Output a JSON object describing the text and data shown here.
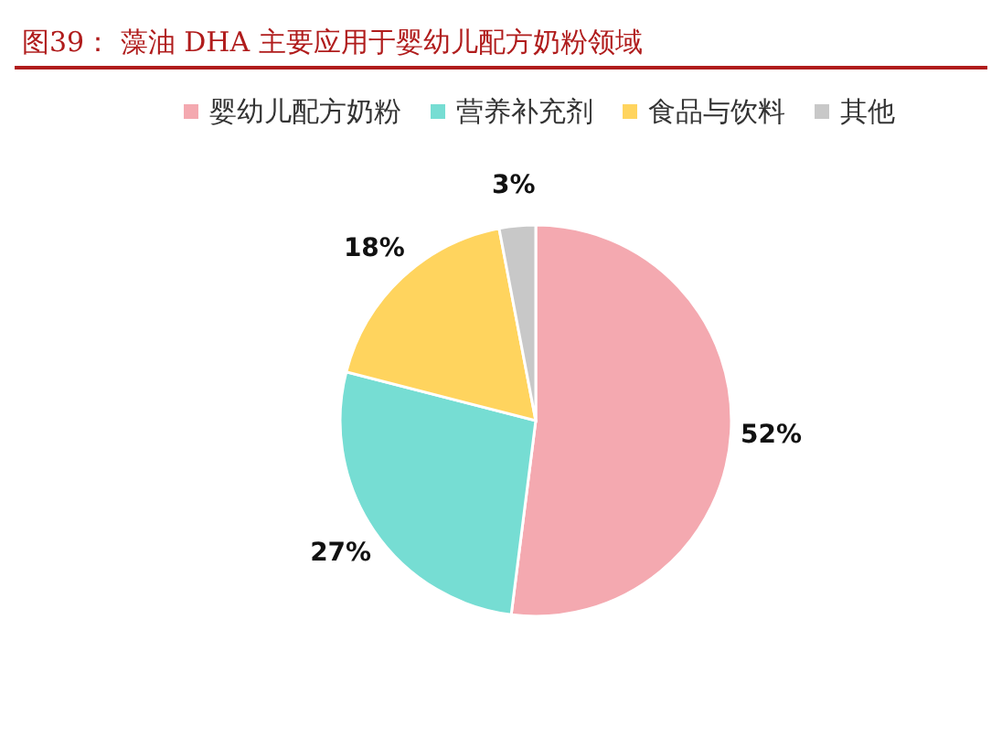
{
  "chart_data": {
    "type": "pie",
    "title": "图39：  藻油 DHA 主要应用于婴幼儿配方奶粉领域",
    "categories": [
      "婴幼儿配方奶粉",
      "营养补充剂",
      "食品与饮料",
      "其他"
    ],
    "values": [
      52,
      27,
      18,
      3
    ],
    "colors": [
      "#f4a9b0",
      "#76ddd3",
      "#ffd45e",
      "#c8c8c8"
    ],
    "value_labels": [
      "52%",
      "27%",
      "18%",
      "3%"
    ],
    "legend": "top"
  }
}
